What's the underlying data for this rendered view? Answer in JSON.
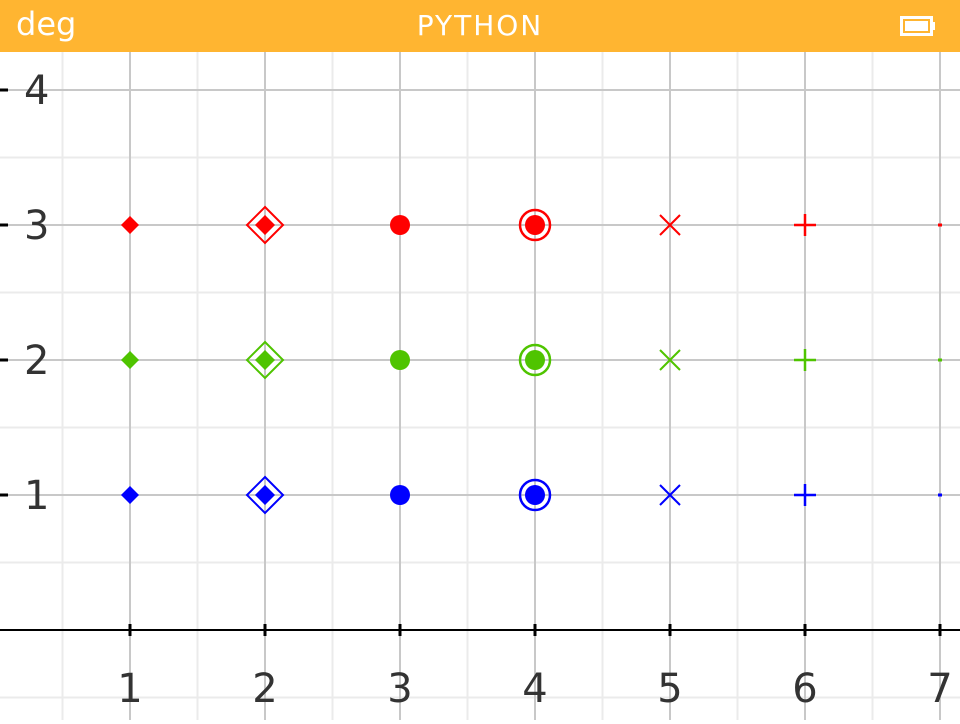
{
  "status_bar": {
    "angle_mode": "deg",
    "app_title": "PYTHON",
    "battery_icon": "battery-full-icon",
    "accent": "#FFB531"
  },
  "chart_data": {
    "type": "scatter",
    "title": "",
    "xlabel": "",
    "ylabel": "",
    "xlim": [
      0.26,
      7.15
    ],
    "ylim": [
      -0.64,
      4.32
    ],
    "grid": true,
    "x_ticks": [
      1,
      2,
      3,
      4,
      5,
      6,
      7
    ],
    "y_ticks": [
      1,
      2,
      3,
      4
    ],
    "series": [
      {
        "color": "#FF0000",
        "points": [
          {
            "x": 1,
            "y": 3,
            "marker": "diamond"
          },
          {
            "x": 2,
            "y": 3,
            "marker": "double-diamond"
          },
          {
            "x": 3,
            "y": 3,
            "marker": "circle"
          },
          {
            "x": 4,
            "y": 3,
            "marker": "double-circle"
          },
          {
            "x": 5,
            "y": 3,
            "marker": "cross"
          },
          {
            "x": 6,
            "y": 3,
            "marker": "plus"
          },
          {
            "x": 7,
            "y": 3,
            "marker": "pixel"
          }
        ]
      },
      {
        "color": "#4FC400",
        "points": [
          {
            "x": 1,
            "y": 2,
            "marker": "diamond"
          },
          {
            "x": 2,
            "y": 2,
            "marker": "double-diamond"
          },
          {
            "x": 3,
            "y": 2,
            "marker": "circle"
          },
          {
            "x": 4,
            "y": 2,
            "marker": "double-circle"
          },
          {
            "x": 5,
            "y": 2,
            "marker": "cross"
          },
          {
            "x": 6,
            "y": 2,
            "marker": "plus"
          },
          {
            "x": 7,
            "y": 2,
            "marker": "pixel"
          }
        ]
      },
      {
        "color": "#0000FF",
        "points": [
          {
            "x": 1,
            "y": 1,
            "marker": "diamond"
          },
          {
            "x": 2,
            "y": 1,
            "marker": "double-diamond"
          },
          {
            "x": 3,
            "y": 1,
            "marker": "circle"
          },
          {
            "x": 4,
            "y": 1,
            "marker": "double-circle"
          },
          {
            "x": 5,
            "y": 1,
            "marker": "cross"
          },
          {
            "x": 6,
            "y": 1,
            "marker": "plus"
          },
          {
            "x": 7,
            "y": 1,
            "marker": "pixel"
          }
        ]
      }
    ]
  }
}
